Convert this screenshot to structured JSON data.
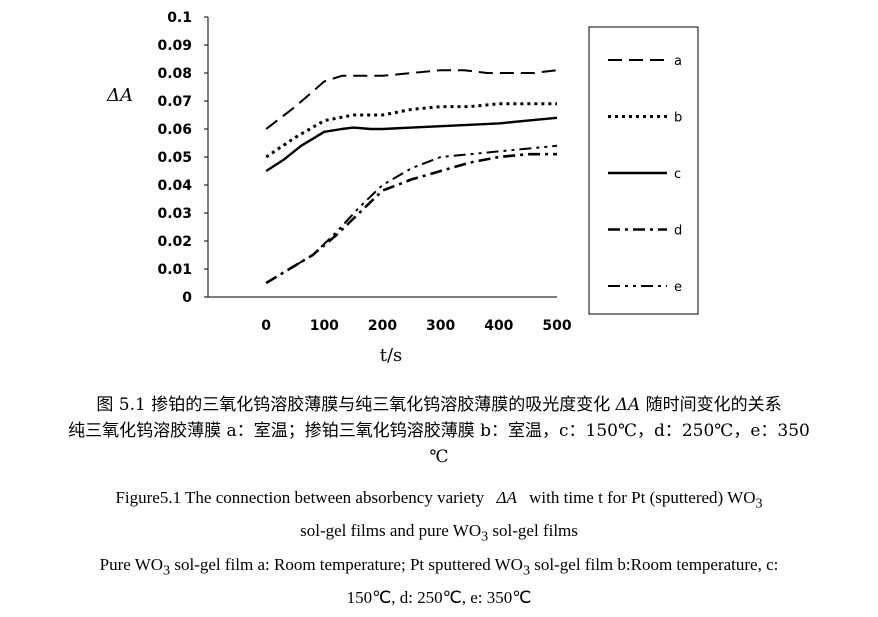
{
  "chart_data": {
    "type": "line",
    "xlabel": "t/s",
    "ylabel": "ΔA",
    "xlim": [
      -100,
      500
    ],
    "ylim": [
      0,
      0.1
    ],
    "xticks": [
      "0",
      "100",
      "200",
      "300",
      "400",
      "500"
    ],
    "yticks": [
      "0",
      "0.01",
      "0.02",
      "0.03",
      "0.04",
      "0.05",
      "0.06",
      "0.07",
      "0.08",
      "0.09",
      "0.1"
    ],
    "legend_position": "right",
    "series": [
      {
        "name": "a",
        "style": "dash",
        "x": [
          0,
          50,
          100,
          130,
          170,
          200,
          250,
          300,
          340,
          380,
          420,
          460,
          500
        ],
        "y": [
          0.06,
          0.068,
          0.077,
          0.079,
          0.079,
          0.079,
          0.08,
          0.081,
          0.081,
          0.08,
          0.08,
          0.08,
          0.081
        ]
      },
      {
        "name": "b",
        "style": "dot",
        "x": [
          0,
          50,
          100,
          150,
          200,
          250,
          300,
          350,
          400,
          450,
          500
        ],
        "y": [
          0.05,
          0.057,
          0.063,
          0.065,
          0.065,
          0.067,
          0.068,
          0.068,
          0.069,
          0.069,
          0.069
        ]
      },
      {
        "name": "c",
        "style": "solid",
        "x": [
          0,
          30,
          60,
          100,
          130,
          150,
          180,
          200,
          250,
          300,
          350,
          400,
          450,
          500
        ],
        "y": [
          0.045,
          0.049,
          0.054,
          0.059,
          0.06,
          0.0605,
          0.06,
          0.06,
          0.0605,
          0.061,
          0.0615,
          0.062,
          0.063,
          0.064
        ]
      },
      {
        "name": "d",
        "style": "dashdot",
        "x": [
          0,
          40,
          80,
          120,
          160,
          200,
          250,
          300,
          350,
          400,
          450,
          500
        ],
        "y": [
          0.005,
          0.01,
          0.015,
          0.022,
          0.03,
          0.038,
          0.042,
          0.045,
          0.048,
          0.05,
          0.051,
          0.051
        ]
      },
      {
        "name": "e",
        "style": "dashdotdot",
        "x": [
          0,
          40,
          80,
          120,
          160,
          200,
          250,
          300,
          350,
          400,
          450,
          500
        ],
        "y": [
          0.005,
          0.01,
          0.015,
          0.023,
          0.032,
          0.04,
          0.046,
          0.05,
          0.051,
          0.052,
          0.053,
          0.054
        ]
      }
    ]
  },
  "caption": {
    "cn_line1_a": "图 5.1  掺铂的三氧化钨溶胶薄膜与纯三氧化钨溶胶薄膜的吸光度变化",
    "cn_line1_b": "ΔA",
    "cn_line1_c": "随时间变化的关系",
    "cn_line2": "纯三氧化钨溶胶薄膜 a：室温；掺铂三氧化钨溶胶薄膜 b：室温，c：150℃，d：250℃，e：350",
    "cn_line3": "℃",
    "en_line1_a": "Figure5.1 The connection between absorbency variety",
    "en_line1_b": "ΔA",
    "en_line1_c": "with time t for Pt (sputtered) WO",
    "en_line1_sub": "3",
    "en_line2_a": "sol-gel films and pure WO",
    "en_line2_sub": "3",
    "en_line2_b": " sol-gel films",
    "en_line3_a": "Pure WO",
    "en_line3_sub1": "3",
    "en_line3_b": " sol-gel film a: Room temperature;    Pt sputtered WO",
    "en_line3_sub2": "3",
    "en_line3_c": " sol-gel film b:Room temperature, c:",
    "en_line4": "150℃, d: 250℃, e: 350℃"
  }
}
